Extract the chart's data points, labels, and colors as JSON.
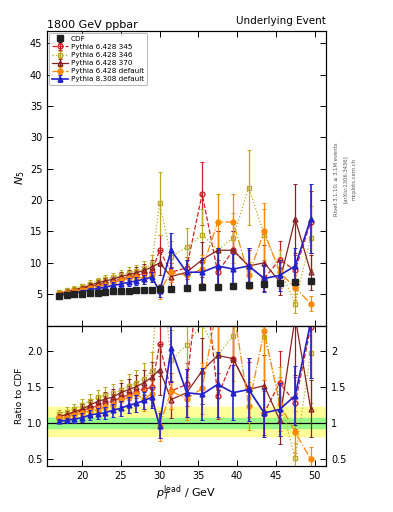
{
  "title": "1800 GeV ppbar",
  "title_right": "Underlying Event",
  "ylabel_main": "$N_5$",
  "ylabel_ratio": "Ratio to CDF",
  "xlabel": "$p_T^{\\rm lead}$ / GeV",
  "right_label1": "Rivet 3.1.10; ≥ 3.1M events",
  "right_label2": "[arXiv:1306.3436]",
  "right_label3": "mcplots.cern.ch",
  "ylim_main": [
    0,
    47
  ],
  "ylim_ratio": [
    0.4,
    2.35
  ],
  "yticks_main": [
    5,
    10,
    15,
    20,
    25,
    30,
    35,
    40,
    45
  ],
  "yticks_ratio": [
    0.5,
    1.0,
    1.5,
    2.0
  ],
  "xlim": [
    15.5,
    51.5
  ],
  "xticks": [
    20,
    25,
    30,
    35,
    40,
    45,
    50
  ],
  "cdf_x": [
    17,
    18,
    19,
    20,
    21,
    22,
    23,
    24,
    25,
    26,
    27,
    28,
    29,
    30,
    31.5,
    33.5,
    35.5,
    37.5,
    39.5,
    41.5,
    43.5,
    45.5,
    47.5,
    49.5
  ],
  "cdf_y": [
    4.7,
    4.85,
    4.95,
    5.05,
    5.15,
    5.25,
    5.35,
    5.45,
    5.5,
    5.55,
    5.6,
    5.65,
    5.7,
    5.75,
    5.9,
    6.0,
    6.1,
    6.2,
    6.35,
    6.5,
    6.6,
    6.75,
    6.9,
    7.1
  ],
  "cdf_yerr": [
    0.12,
    0.12,
    0.12,
    0.12,
    0.12,
    0.12,
    0.12,
    0.12,
    0.12,
    0.12,
    0.12,
    0.12,
    0.12,
    0.12,
    0.15,
    0.15,
    0.15,
    0.15,
    0.18,
    0.18,
    0.18,
    0.18,
    0.2,
    0.2
  ],
  "p345_x": [
    17,
    18,
    19,
    20,
    21,
    22,
    23,
    24,
    25,
    26,
    27,
    28,
    29,
    30,
    31.5,
    33.5,
    35.5,
    37.5,
    39.5,
    41.5,
    43.5,
    45.5,
    47.5,
    49.5
  ],
  "p345_y": [
    5.1,
    5.4,
    5.6,
    5.9,
    6.2,
    6.5,
    6.8,
    7.1,
    7.4,
    7.7,
    8.0,
    8.3,
    8.5,
    12.0,
    8.5,
    9.2,
    21.0,
    8.5,
    12.0,
    9.5,
    7.5,
    10.5,
    8.8,
    16.5
  ],
  "p345_yerr": [
    0.2,
    0.25,
    0.3,
    0.35,
    0.4,
    0.45,
    0.5,
    0.55,
    0.6,
    0.7,
    0.8,
    0.9,
    1.0,
    2.5,
    1.5,
    1.8,
    5.0,
    2.0,
    3.0,
    2.5,
    2.0,
    3.0,
    2.5,
    5.0
  ],
  "p346_x": [
    17,
    18,
    19,
    20,
    21,
    22,
    23,
    24,
    25,
    26,
    27,
    28,
    29,
    30,
    31.5,
    33.5,
    35.5,
    37.5,
    39.5,
    41.5,
    43.5,
    45.5,
    47.5,
    49.5
  ],
  "p346_y": [
    5.3,
    5.6,
    5.9,
    6.3,
    6.7,
    7.1,
    7.4,
    7.7,
    8.0,
    8.4,
    8.7,
    9.1,
    9.8,
    19.5,
    11.0,
    12.5,
    14.5,
    12.0,
    14.0,
    22.0,
    14.5,
    9.0,
    3.5,
    14.0
  ],
  "p346_yerr": [
    0.25,
    0.3,
    0.35,
    0.4,
    0.5,
    0.55,
    0.6,
    0.7,
    0.8,
    0.9,
    1.0,
    1.2,
    1.5,
    5.0,
    2.5,
    3.0,
    4.0,
    3.0,
    4.0,
    6.0,
    4.0,
    3.0,
    1.5,
    5.0
  ],
  "p370_x": [
    17,
    18,
    19,
    20,
    21,
    22,
    23,
    24,
    25,
    26,
    27,
    28,
    29,
    30,
    31.5,
    33.5,
    35.5,
    37.5,
    39.5,
    41.5,
    43.5,
    45.5,
    47.5,
    49.5
  ],
  "p370_y": [
    5.1,
    5.4,
    5.7,
    6.0,
    6.4,
    6.8,
    7.1,
    7.4,
    7.8,
    8.1,
    8.4,
    8.8,
    9.3,
    10.0,
    7.8,
    8.5,
    10.5,
    12.0,
    12.0,
    9.5,
    10.0,
    7.0,
    17.0,
    8.5
  ],
  "p370_yerr": [
    0.2,
    0.25,
    0.3,
    0.35,
    0.4,
    0.45,
    0.5,
    0.6,
    0.7,
    0.8,
    0.9,
    1.0,
    1.2,
    2.0,
    1.5,
    2.0,
    2.8,
    3.0,
    3.0,
    2.8,
    2.8,
    2.2,
    5.5,
    2.8
  ],
  "pdef_x": [
    17,
    18,
    19,
    20,
    21,
    22,
    23,
    24,
    25,
    26,
    27,
    28,
    29,
    30,
    31.5,
    33.5,
    35.5,
    37.5,
    39.5,
    41.5,
    43.5,
    45.5,
    47.5,
    49.5
  ],
  "pdef_y": [
    5.0,
    5.2,
    5.5,
    5.7,
    6.0,
    6.2,
    6.5,
    6.8,
    7.2,
    7.5,
    7.8,
    7.5,
    8.0,
    5.5,
    8.5,
    8.0,
    9.0,
    16.5,
    16.5,
    8.0,
    15.0,
    8.5,
    6.0,
    3.5
  ],
  "pdef_yerr": [
    0.2,
    0.25,
    0.3,
    0.35,
    0.4,
    0.45,
    0.5,
    0.55,
    0.65,
    0.75,
    0.85,
    0.9,
    1.0,
    1.2,
    1.5,
    1.8,
    2.2,
    4.5,
    4.5,
    2.2,
    4.5,
    2.5,
    2.0,
    1.2
  ],
  "p8_x": [
    17,
    18,
    19,
    20,
    21,
    22,
    23,
    24,
    25,
    26,
    27,
    28,
    29,
    30,
    31.5,
    33.5,
    35.5,
    37.5,
    39.5,
    41.5,
    43.5,
    45.5,
    47.5,
    49.5
  ],
  "p8_y": [
    4.8,
    5.0,
    5.2,
    5.4,
    5.7,
    5.9,
    6.1,
    6.4,
    6.6,
    6.9,
    7.1,
    7.4,
    7.7,
    5.5,
    12.0,
    8.5,
    8.5,
    9.5,
    9.0,
    9.5,
    7.5,
    8.0,
    9.5,
    17.0
  ],
  "p8_yerr": [
    0.15,
    0.2,
    0.25,
    0.3,
    0.35,
    0.4,
    0.45,
    0.5,
    0.55,
    0.6,
    0.65,
    0.7,
    0.8,
    1.0,
    2.8,
    2.0,
    2.2,
    2.8,
    2.4,
    2.8,
    2.2,
    2.5,
    2.8,
    5.5
  ],
  "cdf_color": "#222222",
  "p345_color": "#cc2222",
  "p346_color": "#bbaa22",
  "p370_color": "#882222",
  "pdef_color": "#ff8800",
  "p8_color": "#2222cc",
  "green_band": [
    0.93,
    1.07
  ],
  "yellow_band": [
    0.82,
    1.22
  ]
}
